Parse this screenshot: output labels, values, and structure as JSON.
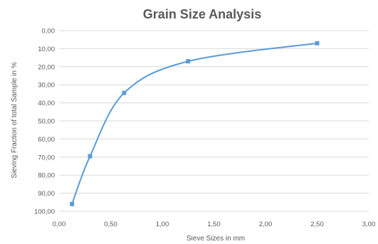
{
  "chart_data": {
    "type": "scatter",
    "title": "Grain Size Analysis",
    "xlabel": "Sieve Sizes in mm",
    "ylabel": "Sieving Fraction of total Sample in %",
    "xlim": [
      0,
      3
    ],
    "ylim": [
      0,
      100
    ],
    "y_inverted": true,
    "smoothed_line": true,
    "grid": "horizontal",
    "legend": "none",
    "x_ticks": [
      "0,00",
      "0,50",
      "1,00",
      "1,50",
      "2,00",
      "2,50",
      "3,00"
    ],
    "y_ticks": [
      "0,00",
      "10,00",
      "20,00",
      "30,00",
      "40,00",
      "50,00",
      "60,00",
      "70,00",
      "80,00",
      "90,00",
      "100,00"
    ],
    "series": [
      {
        "color": "#5b9bd5",
        "points": [
          {
            "x": 0.125,
            "y": 96
          },
          {
            "x": 0.3,
            "y": 69.5
          },
          {
            "x": 0.63,
            "y": 34.5
          },
          {
            "x": 1.25,
            "y": 17
          },
          {
            "x": 2.5,
            "y": 7
          }
        ]
      }
    ]
  }
}
